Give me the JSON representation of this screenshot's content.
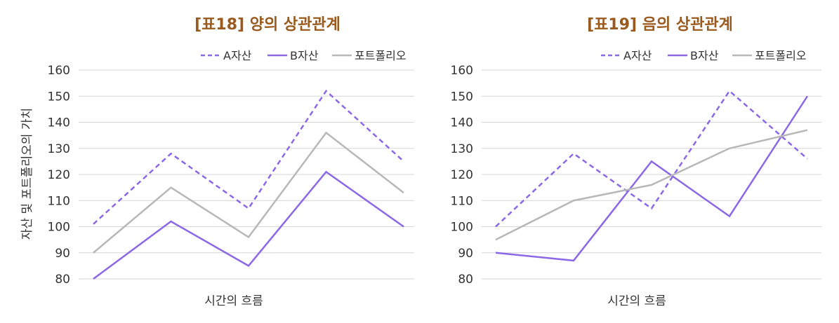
{
  "colors": {
    "title": "#9a5a1e",
    "a_series": "#8c67e6",
    "b_series": "#8c67e6",
    "portfolio": "#b8b8b8",
    "grid": "#d6d6d6",
    "axis_text": "#333333"
  },
  "chart_data": [
    {
      "type": "line",
      "title": "[표18] 양의 상관관계",
      "xlabel": "시간의 흐름",
      "ylabel": "자산 및 포트폴리오의 가치",
      "ylim": [
        80,
        160
      ],
      "yticks": [
        "160",
        "150",
        "140",
        "130",
        "120",
        "110",
        "100",
        "90",
        "80"
      ],
      "grid": true,
      "legend_position": "top-right",
      "x": [
        1,
        2,
        3,
        4,
        5
      ],
      "series": [
        {
          "name": "A자산",
          "style": "dashed",
          "values": [
            101,
            128,
            107,
            152,
            125
          ]
        },
        {
          "name": "B자산",
          "style": "solid",
          "values": [
            80,
            102,
            85,
            121,
            100
          ]
        },
        {
          "name": "포트폴리오",
          "style": "solid",
          "values": [
            90,
            115,
            96,
            136,
            113
          ]
        }
      ]
    },
    {
      "type": "line",
      "title": "[표19] 음의 상관관계",
      "xlabel": "시간의 흐름",
      "ylabel": "",
      "ylim": [
        80,
        160
      ],
      "yticks": [
        "160",
        "150",
        "140",
        "130",
        "120",
        "110",
        "100",
        "90",
        "80"
      ],
      "grid": true,
      "legend_position": "top-right",
      "x": [
        1,
        2,
        3,
        4,
        5
      ],
      "series": [
        {
          "name": "A자산",
          "style": "dashed",
          "values": [
            100,
            128,
            107,
            152,
            126
          ]
        },
        {
          "name": "B자산",
          "style": "solid",
          "values": [
            90,
            87,
            125,
            104,
            150
          ]
        },
        {
          "name": "포트폴리오",
          "style": "solid",
          "values": [
            95,
            110,
            116,
            130,
            137
          ]
        }
      ]
    }
  ]
}
